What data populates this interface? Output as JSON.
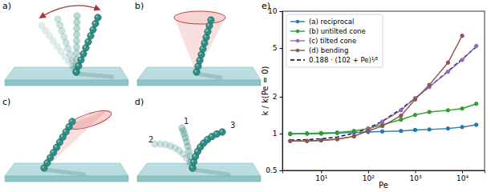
{
  "panels": [
    {
      "label": "a)"
    },
    {
      "label": "b)"
    },
    {
      "label": "c)"
    },
    {
      "label": "d)",
      "labels": [
        "1",
        "2",
        "3"
      ]
    }
  ],
  "chart_data": {
    "type": "line",
    "title": "e)",
    "x_label": "Pe",
    "y_label": "k / k(Pe = 0)",
    "log": true,
    "legend": "upper left",
    "xlim": [
      1.5,
      30000
    ],
    "ylim": [
      0.5,
      10
    ],
    "xticks": [
      {
        "value": 10,
        "label": "10¹"
      },
      {
        "value": 100,
        "label": "10²"
      },
      {
        "value": 1000,
        "label": "10³"
      },
      {
        "value": 10000,
        "label": "10⁴"
      }
    ],
    "yticks": [
      0.5,
      1,
      2,
      5,
      10
    ],
    "x": [
      2.2,
      5,
      10,
      22,
      50,
      100,
      200,
      500,
      1000,
      2000,
      5000,
      10000,
      20000
    ],
    "series": [
      {
        "name": "(a) reciprocal",
        "color": "#1f77b4",
        "marker": "circle",
        "line_style": "solid",
        "values": [
          0.99,
          1.0,
          1.0,
          1.01,
          1.02,
          1.03,
          1.04,
          1.05,
          1.07,
          1.08,
          1.1,
          1.13,
          1.18
        ]
      },
      {
        "name": "(b) untilted cone",
        "color": "#2ca02c",
        "marker": "circle",
        "line_style": "solid",
        "values": [
          1.0,
          1.0,
          1.01,
          1.02,
          1.05,
          1.1,
          1.18,
          1.3,
          1.42,
          1.5,
          1.55,
          1.6,
          1.75
        ]
      },
      {
        "name": "(c) tilted cone",
        "color": "#9467bd",
        "marker": "circle",
        "line_style": "solid",
        "values": [
          0.87,
          0.87,
          0.88,
          0.9,
          0.95,
          1.07,
          1.25,
          1.55,
          1.95,
          2.4,
          3.2,
          4.0,
          5.2
        ]
      },
      {
        "name": "(d) bending",
        "color": "#8c564b",
        "marker": "circle",
        "line_style": "solid",
        "values": [
          0.87,
          0.87,
          0.88,
          0.9,
          0.95,
          1.05,
          1.15,
          1.4,
          1.9,
          2.5,
          3.8,
          6.3,
          null
        ]
      },
      {
        "name": "0.188 · (102 + Pe)¹⁄³",
        "color": "#000000",
        "marker": "none",
        "line_style": "dashed",
        "values": [
          0.885,
          0.892,
          0.906,
          0.938,
          1.004,
          1.104,
          1.261,
          1.587,
          1.943,
          2.408,
          3.236,
          4.063,
          5.11
        ]
      }
    ]
  }
}
